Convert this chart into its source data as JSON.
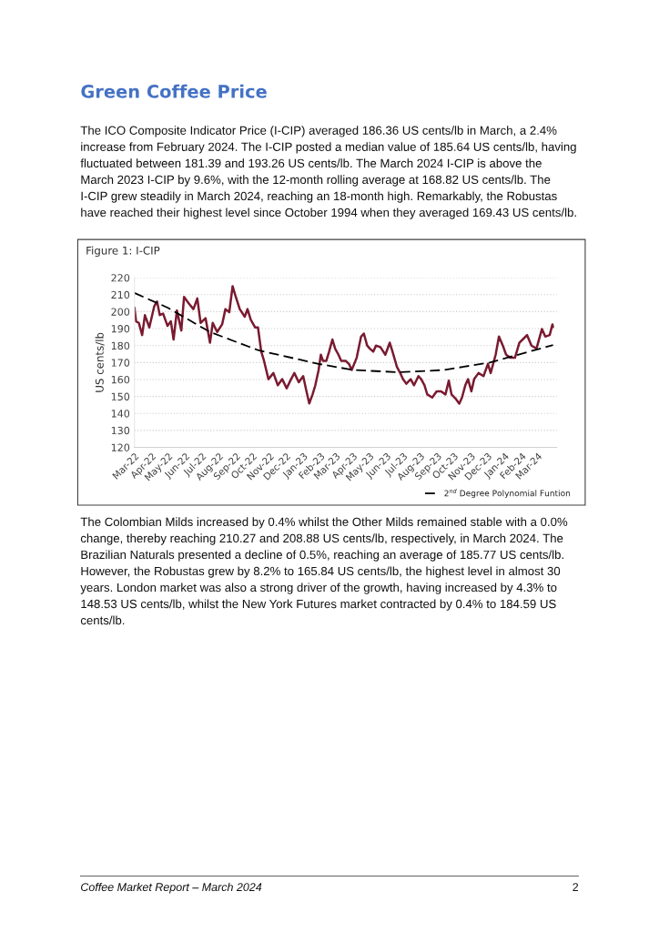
{
  "chart_data": {
    "type": "line",
    "title": "Green Coffee Price",
    "subtitle": "Figure 1: I-CIP",
    "ylabel": "US cents/lb",
    "annotations": [
      "The ICO Composite Indicator Price (I-CIP) averaged 186.36 US cents/lb in March, a 2.4% increase from February 2024. The I-CIP posted a median value of 185.64 US cents/lb, having fluctuated between 181.39 and 193.26 US cents/lb. The March 2024 I-CIP is above the March 2023 I-CIP by 9.6%, with the 12-month rolling average at 168.82 US cents/lb. The I-CIP grew steadily in March 2024, reaching an 18-month high. Remarkably, the Robustas have reached their highest level since October 1994 when they averaged 169.43 US cents/lb.",
      "The Colombian Milds increased by 0.4% whilst the Other Milds remained stable with a 0.0% change, thereby reaching 210.27 and 208.88 US cents/lb, respectively, in March 2024. The Brazilian Naturals presented a decline of 0.5%, reaching an average of 185.77 US cents/lb. However, the Robustas grew by 8.2% to 165.84 US cents/lb, the highest level in almost 30 years. London market was also a strong driver of the growth, having increased by 4.3% to 148.53 US cents/lb, whilst the New York Futures market contracted by 0.4% to 184.59 US cents/lb.",
      "Coffee Market Report – March 2024",
      "2"
    ],
    "series": [
      {
        "color": "#7a1a30",
        "line_style": "solid",
        "x": [
          "2022-03-01",
          "2022-03-04",
          "2022-03-09",
          "2022-03-15",
          "2022-03-20",
          "2022-03-28",
          "2022-04-06",
          "2022-04-11",
          "2022-04-16",
          "2022-04-22",
          "2022-04-30",
          "2022-05-06",
          "2022-05-11",
          "2022-05-17",
          "2022-05-25",
          "2022-05-30",
          "2022-06-07",
          "2022-06-16",
          "2022-06-23",
          "2022-06-29",
          "2022-07-08",
          "2022-07-16",
          "2022-07-21",
          "2022-07-29",
          "2022-08-07",
          "2022-08-13",
          "2022-08-20",
          "2022-08-26",
          "2022-08-31",
          "2022-09-08",
          "2022-09-17",
          "2022-09-22",
          "2022-09-28",
          "2022-10-06",
          "2022-10-11",
          "2022-10-17",
          "2022-10-22",
          "2022-10-30",
          "2022-11-08",
          "2022-11-16",
          "2022-11-24",
          "2022-12-02",
          "2022-12-10",
          "2022-12-16",
          "2022-12-24",
          "2023-01-01",
          "2023-01-07",
          "2023-01-12",
          "2023-01-18",
          "2023-01-23",
          "2023-01-29",
          "2023-02-02",
          "2023-02-06",
          "2023-02-12",
          "2023-02-17",
          "2023-02-23",
          "2023-02-28",
          "2023-03-06",
          "2023-03-11",
          "2023-03-19",
          "2023-03-25",
          "2023-03-30",
          "2023-04-08",
          "2023-04-16",
          "2023-04-21",
          "2023-04-27",
          "2023-05-02",
          "2023-05-08",
          "2023-05-13",
          "2023-05-21",
          "2023-05-30",
          "2023-06-07",
          "2023-06-12",
          "2023-06-20",
          "2023-06-26",
          "2023-07-01",
          "2023-07-07",
          "2023-07-15",
          "2023-07-21",
          "2023-07-29",
          "2023-08-03",
          "2023-08-09",
          "2023-08-14",
          "2023-08-23",
          "2023-08-31",
          "2023-09-08",
          "2023-09-16",
          "2023-09-22",
          "2023-09-27",
          "2023-10-05",
          "2023-10-11",
          "2023-10-16",
          "2023-10-22",
          "2023-10-27",
          "2023-11-02",
          "2023-11-07",
          "2023-11-15",
          "2023-11-24",
          "2023-12-02",
          "2023-12-07",
          "2023-12-16",
          "2023-12-22",
          "2023-12-29",
          "2024-01-04",
          "2024-01-12",
          "2024-01-20",
          "2024-01-28",
          "2024-02-03",
          "2024-02-11",
          "2024-02-19",
          "2024-02-28",
          "2024-03-09",
          "2024-03-15",
          "2024-03-23",
          "2024-03-28",
          "2024-03-29"
        ],
        "values": [
          202.4,
          194.3,
          193.4,
          186.2,
          197.9,
          190.7,
          203.3,
          206,
          198,
          198.8,
          191.6,
          194.3,
          183.6,
          200.7,
          188.9,
          208.7,
          205.1,
          201.5,
          207.8,
          193.4,
          196.1,
          181.7,
          193.4,
          188,
          192.5,
          201.5,
          199.7,
          215,
          209.6,
          201.5,
          197,
          201.5,
          195.2,
          190.7,
          190.7,
          176.4,
          171,
          160.2,
          163.8,
          156.6,
          160.2,
          154.8,
          160.2,
          163.8,
          158.4,
          162,
          153,
          145.9,
          151.2,
          156.6,
          165.6,
          174.6,
          171,
          171,
          176.4,
          183.6,
          178.2,
          174.6,
          171,
          171,
          169.2,
          165.6,
          172.8,
          185.3,
          187.1,
          180,
          178.2,
          176.4,
          180,
          179.1,
          174.6,
          181.7,
          176.4,
          167.4,
          163.8,
          160.2,
          157.5,
          160.2,
          156.6,
          162,
          160.2,
          156.6,
          151.2,
          149.4,
          153,
          153,
          151.2,
          159.3,
          151.2,
          148.5,
          145.8,
          149.4,
          156.6,
          160.2,
          153,
          160.2,
          163.8,
          162,
          169.2,
          163.8,
          174.6,
          185.3,
          180,
          174.6,
          172.8,
          172.8,
          181.7,
          183.6,
          186.2,
          180,
          178.2,
          189.8,
          185.3,
          186.2,
          192.5,
          191
        ]
      },
      {
        "name": "2$^{nd}$ Degree Polynomial Funtion",
        "color": "#000000",
        "line_style": "dashed",
        "x": [
          "2022-03-01",
          "2022-04-30",
          "2022-07-16",
          "2022-10-11",
          "2023-01-29",
          "2023-04-02",
          "2023-06-23",
          "2023-09-13",
          "2023-12-05",
          "2024-03-29"
        ],
        "values": [
          211,
          202.4,
          188,
          177.3,
          169.2,
          165.6,
          164.3,
          165.6,
          170,
          180.3
        ]
      }
    ],
    "xlim": [
      "2022-03-01",
      "2024-04-05"
    ],
    "xticks": [
      {
        "value": "2022-03-01",
        "label": "Mar-22"
      },
      {
        "value": "2022-04-01",
        "label": "Apr-22"
      },
      {
        "value": "2022-05-01",
        "label": "May-22"
      },
      {
        "value": "2022-06-01",
        "label": "Jun-22"
      },
      {
        "value": "2022-07-01",
        "label": "Jul-22"
      },
      {
        "value": "2022-08-01",
        "label": "Aug-22"
      },
      {
        "value": "2022-09-01",
        "label": "Sep-22"
      },
      {
        "value": "2022-10-01",
        "label": "Oct-22"
      },
      {
        "value": "2022-11-01",
        "label": "Nov-22"
      },
      {
        "value": "2022-12-01",
        "label": "Dec-22"
      },
      {
        "value": "2023-01-01",
        "label": "Jan-23"
      },
      {
        "value": "2023-02-01",
        "label": "Feb-23"
      },
      {
        "value": "2023-03-01",
        "label": "Mar-23"
      },
      {
        "value": "2023-04-01",
        "label": "Apr-23"
      },
      {
        "value": "2023-05-01",
        "label": "May-23"
      },
      {
        "value": "2023-06-01",
        "label": "Jun-23"
      },
      {
        "value": "2023-07-01",
        "label": "Jul-23"
      },
      {
        "value": "2023-08-01",
        "label": "Aug-23"
      },
      {
        "value": "2023-09-01",
        "label": "Sep-23"
      },
      {
        "value": "2023-10-01",
        "label": "Oct-23"
      },
      {
        "value": "2023-11-01",
        "label": "Nov-23"
      },
      {
        "value": "2023-12-01",
        "label": "Dec-23"
      },
      {
        "value": "2024-01-01",
        "label": "Jan-24"
      },
      {
        "value": "2024-02-01",
        "label": "Feb-24"
      },
      {
        "value": "2024-03-01",
        "label": "Mar-24"
      }
    ],
    "ylim": [
      120,
      220
    ],
    "yticks": [
      120,
      130,
      140,
      150,
      160,
      170,
      180,
      190,
      200,
      210,
      220
    ],
    "grid": "y",
    "legend": "bottom right",
    "marker": "none"
  }
}
